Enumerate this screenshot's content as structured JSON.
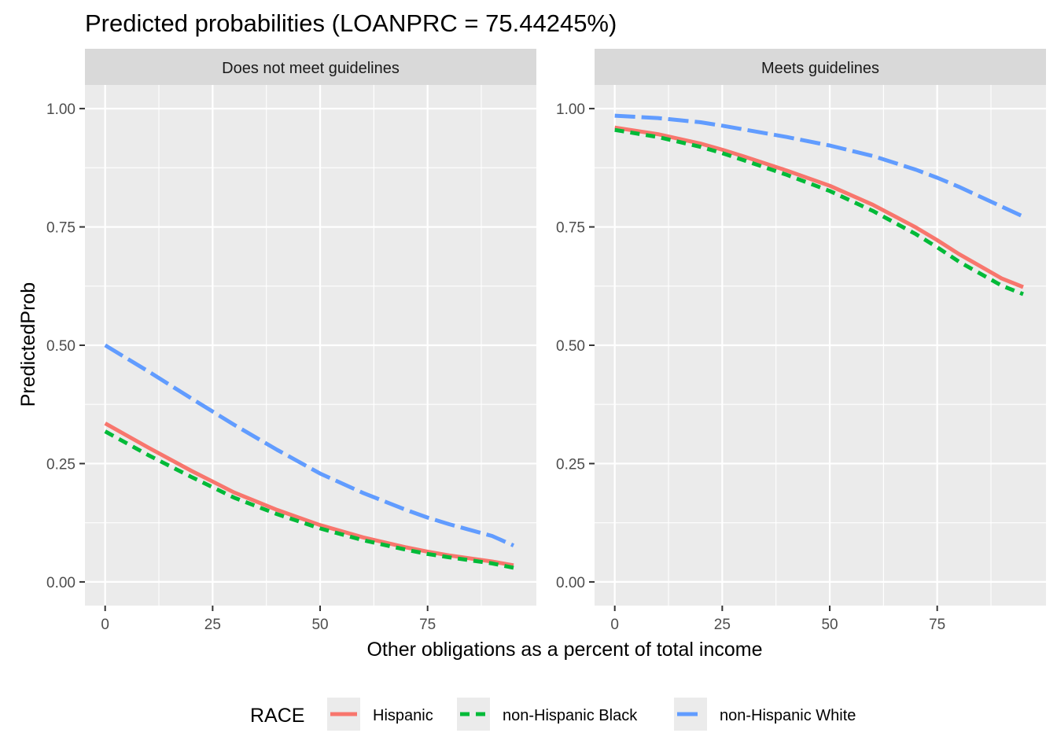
{
  "chart_data": {
    "type": "line",
    "title": "Predicted probabilities (LOANPRC = 75.44245%)",
    "xlabel": "Other obligations as a percent of total income",
    "ylabel": "PredictedProb",
    "xlim": [
      -4.7,
      100.3
    ],
    "ylim": [
      -0.05,
      1.05
    ],
    "x_ticks": [
      0,
      25,
      50,
      75
    ],
    "x_tick_labels": [
      "0",
      "25",
      "50",
      "75"
    ],
    "y_ticks": [
      0,
      0.25,
      0.5,
      0.75,
      1.0
    ],
    "y_tick_labels": [
      "0.00",
      "0.25",
      "0.50",
      "0.75",
      "1.00"
    ],
    "grid": true,
    "legend": {
      "title": "RACE",
      "position": "bottom",
      "entries": [
        "Hispanic",
        "non-Hispanic Black",
        "non-Hispanic White"
      ]
    },
    "series_styles": [
      {
        "name": "Hispanic",
        "color": "#F8766D",
        "dash": "solid"
      },
      {
        "name": "non-Hispanic Black",
        "color": "#00BA38",
        "dash": "dashed"
      },
      {
        "name": "non-Hispanic White",
        "color": "#619CFF",
        "dash": "longdash"
      }
    ],
    "panels": [
      {
        "strip": "Does not meet guidelines",
        "x": [
          0,
          10,
          20,
          25,
          30,
          40,
          50,
          60,
          70,
          75,
          80,
          90,
          95
        ],
        "series": [
          {
            "name": "Hispanic",
            "values": [
              0.335,
              0.284,
              0.235,
              0.212,
              0.189,
              0.152,
              0.12,
              0.094,
              0.073,
              0.064,
              0.056,
              0.043,
              0.035
            ]
          },
          {
            "name": "non-Hispanic Black",
            "values": [
              0.318,
              0.268,
              0.222,
              0.2,
              0.178,
              0.143,
              0.113,
              0.088,
              0.068,
              0.059,
              0.052,
              0.039,
              0.03
            ]
          },
          {
            "name": "non-Hispanic White",
            "values": [
              0.5,
              0.445,
              0.388,
              0.36,
              0.332,
              0.279,
              0.229,
              0.188,
              0.152,
              0.136,
              0.122,
              0.097,
              0.077
            ]
          }
        ]
      },
      {
        "strip": "Meets guidelines",
        "x": [
          0,
          10,
          20,
          25,
          30,
          40,
          50,
          60,
          70,
          75,
          80,
          90,
          95
        ],
        "series": [
          {
            "name": "Hispanic",
            "values": [
              0.96,
              0.946,
              0.926,
              0.913,
              0.899,
              0.869,
              0.837,
              0.797,
              0.749,
              0.722,
              0.693,
              0.641,
              0.623
            ]
          },
          {
            "name": "non-Hispanic Black",
            "values": [
              0.955,
              0.94,
              0.919,
              0.906,
              0.891,
              0.86,
              0.826,
              0.784,
              0.735,
              0.707,
              0.677,
              0.626,
              0.608
            ]
          },
          {
            "name": "non-Hispanic White",
            "values": [
              0.985,
              0.98,
              0.971,
              0.964,
              0.956,
              0.94,
              0.922,
              0.9,
              0.871,
              0.854,
              0.835,
              0.793,
              0.772
            ]
          }
        ]
      }
    ]
  }
}
